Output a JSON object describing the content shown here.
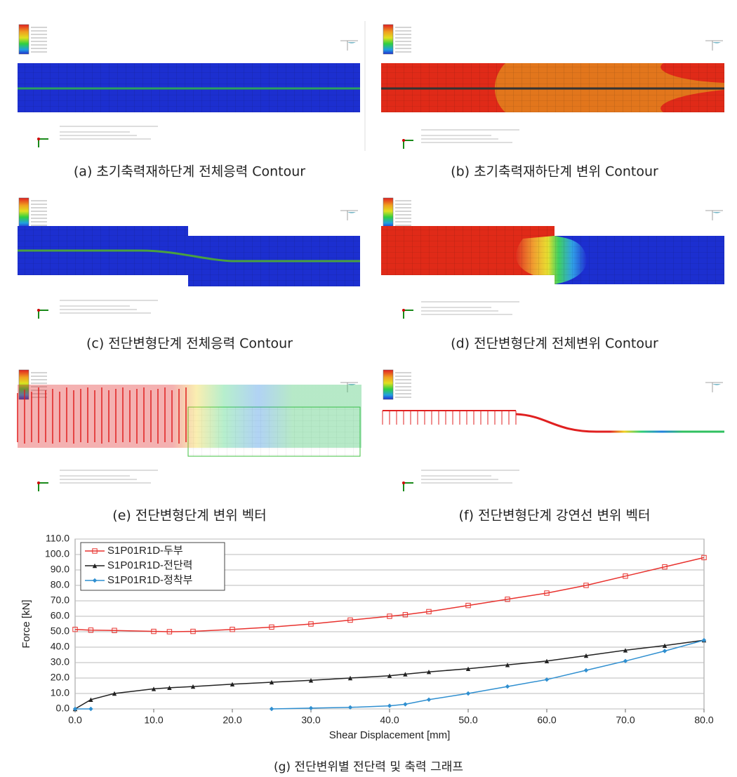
{
  "panels": [
    {
      "caption": "(a) 초기축력재하단계 전체응력 Contour"
    },
    {
      "caption": "(b) 초기축력재하단계 변위 Contour"
    },
    {
      "caption": "(c) 전단변형단계 전체응력 Contour"
    },
    {
      "caption": "(d) 전단변형단계 전체변위 Contour"
    },
    {
      "caption": "(e) 전단변형단계 변위 벡터"
    },
    {
      "caption": "(f) 전단변형단계 강연선 변위 벡터"
    }
  ],
  "chart_data": {
    "type": "line",
    "caption": "(g) 전단변위별 전단력 및 축력 그래프",
    "x_label": "Shear Displacement [mm]",
    "y_label": "Force [kN]",
    "x": [
      0,
      2,
      5,
      10,
      12,
      15,
      20,
      25,
      30,
      35,
      40,
      42,
      45,
      50,
      55,
      60,
      65,
      70,
      75,
      80
    ],
    "series": [
      {
        "name": "S1P01R1D-두부",
        "color": "#e8322e",
        "marker": "square",
        "values": [
          51.5,
          51,
          50.8,
          50.2,
          50,
          50.2,
          51.5,
          53,
          55,
          57.5,
          60,
          61,
          63,
          67,
          71,
          75,
          80,
          86,
          92,
          98
        ]
      },
      {
        "name": "S1P01R1D-전단력",
        "color": "#222222",
        "marker": "triangle",
        "values": [
          0,
          6,
          10,
          13,
          13.7,
          14.5,
          16,
          17.3,
          18.5,
          20,
          21.5,
          22.5,
          24,
          26,
          28.5,
          31,
          34.5,
          38,
          41,
          44.5
        ]
      },
      {
        "name": "S1P01R1D-정착부",
        "color": "#2f8fd0",
        "marker": "diamond",
        "values": [
          0,
          0,
          null,
          null,
          null,
          null,
          null,
          0,
          0.5,
          1,
          2,
          3,
          6,
          10,
          14.5,
          19,
          25,
          31,
          37.5,
          44.5
        ]
      }
    ],
    "xlim": [
      0,
      80
    ],
    "xticks": [
      {
        "value": 0,
        "label": "0.0"
      },
      {
        "value": 10,
        "label": "10.0"
      },
      {
        "value": 20,
        "label": "20.0"
      },
      {
        "value": 30,
        "label": "30.0"
      },
      {
        "value": 40,
        "label": "40.0"
      },
      {
        "value": 50,
        "label": "50.0"
      },
      {
        "value": 60,
        "label": "60.0"
      },
      {
        "value": 70,
        "label": "70.0"
      },
      {
        "value": 80,
        "label": "80.0"
      }
    ],
    "ylim": [
      0,
      110
    ],
    "yticks": [
      {
        "value": 0,
        "label": "0.0"
      },
      {
        "value": 10,
        "label": "10.0"
      },
      {
        "value": 20,
        "label": "20.0"
      },
      {
        "value": 30,
        "label": "30.0"
      },
      {
        "value": 40,
        "label": "40.0"
      },
      {
        "value": 50,
        "label": "50.0"
      },
      {
        "value": 60,
        "label": "60.0"
      },
      {
        "value": 70,
        "label": "70.0"
      },
      {
        "value": 80,
        "label": "80.0"
      },
      {
        "value": 90,
        "label": "90.0"
      },
      {
        "value": 100,
        "label": "100.0"
      },
      {
        "value": 110,
        "label": "110.0"
      }
    ],
    "grid": true,
    "legend": "top-left"
  }
}
